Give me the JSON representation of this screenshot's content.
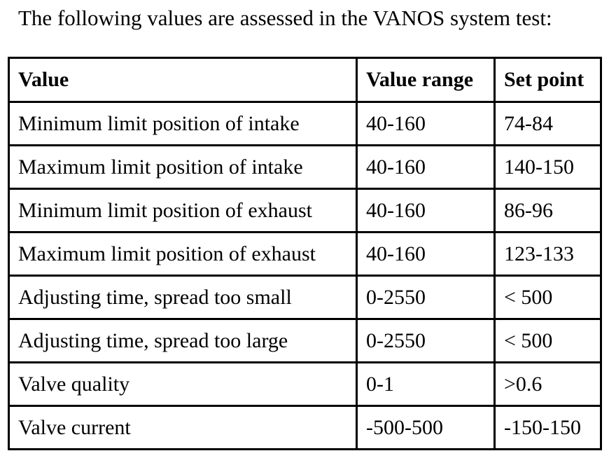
{
  "intro": "The following values are assessed in the VANOS system test:",
  "table": {
    "headers": [
      "Value",
      "Value range",
      "Set point"
    ],
    "rows": [
      [
        "Minimum limit position of intake",
        "40-160",
        "74-84"
      ],
      [
        "Maximum limit position of intake",
        "40-160",
        "140-150"
      ],
      [
        "Minimum limit position of exhaust",
        "40-160",
        "86-96"
      ],
      [
        "Maximum limit position of exhaust",
        "40-160",
        "123-133"
      ],
      [
        "Adjusting time, spread too small",
        "0-2550",
        "< 500"
      ],
      [
        "Adjusting time, spread too large",
        "0-2550",
        "< 500"
      ],
      [
        "Valve quality",
        "0-1",
        ">0.6"
      ],
      [
        "Valve current",
        "-500-500",
        "-150-150"
      ]
    ]
  }
}
